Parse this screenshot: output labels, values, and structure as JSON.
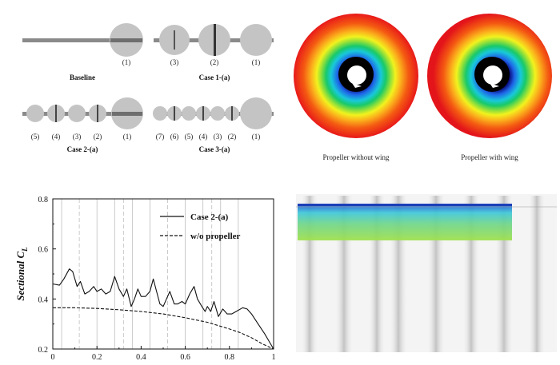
{
  "configs": {
    "baseline": {
      "caption": "Baseline",
      "labels": [
        "(1)"
      ]
    },
    "case1a": {
      "caption": "Case 1-(a)",
      "labels": [
        "(3)",
        "(2)",
        "(1)"
      ]
    },
    "case2a": {
      "caption": "Case 2-(a)",
      "labels": [
        "(5)",
        "(4)",
        "(3)",
        "(2)",
        "(1)"
      ]
    },
    "case3a": {
      "caption": "Case 3-(a)",
      "labels": [
        "(7)",
        "(6)",
        "(5)",
        "(4)",
        "(3)",
        "(2)",
        "(1)"
      ]
    }
  },
  "contours": {
    "left_caption": "Propeller without wing",
    "right_caption": "Propeller with wing",
    "colors": [
      "#e8191a",
      "#f45a12",
      "#fbb01c",
      "#f2f21e",
      "#8fe03a",
      "#18c96a",
      "#19c9d9",
      "#1e66e8",
      "#0a0a7a",
      "#000000"
    ]
  },
  "chart_data": {
    "type": "line",
    "xlim": [
      0,
      1
    ],
    "ylim": [
      0.2,
      0.8
    ],
    "xticks": [
      "0",
      "0.2",
      "0.4",
      "0.6",
      "0.8",
      "1"
    ],
    "yticks": [
      "0.2",
      "0.4",
      "0.6",
      "0.8"
    ],
    "ylabel": "Sectional C",
    "ylabel_sub": "L",
    "legend_placement": "top-right",
    "series": [
      {
        "name": "Case 2-(a)",
        "style": "solid",
        "x": [
          0,
          0.03,
          0.05,
          0.075,
          0.09,
          0.11,
          0.125,
          0.145,
          0.165,
          0.185,
          0.2,
          0.22,
          0.24,
          0.26,
          0.28,
          0.3,
          0.32,
          0.335,
          0.355,
          0.37,
          0.385,
          0.4,
          0.42,
          0.44,
          0.455,
          0.47,
          0.485,
          0.5,
          0.515,
          0.53,
          0.55,
          0.565,
          0.585,
          0.6,
          0.62,
          0.64,
          0.655,
          0.675,
          0.69,
          0.7,
          0.715,
          0.73,
          0.75,
          0.77,
          0.79,
          0.81,
          0.83,
          0.86,
          0.88,
          0.9,
          0.93,
          0.96,
          0.98,
          1.0
        ],
        "y": [
          0.46,
          0.455,
          0.48,
          0.52,
          0.51,
          0.45,
          0.47,
          0.42,
          0.43,
          0.45,
          0.43,
          0.44,
          0.42,
          0.43,
          0.49,
          0.44,
          0.41,
          0.44,
          0.37,
          0.4,
          0.44,
          0.41,
          0.41,
          0.43,
          0.48,
          0.43,
          0.38,
          0.37,
          0.4,
          0.43,
          0.38,
          0.38,
          0.39,
          0.38,
          0.42,
          0.45,
          0.4,
          0.37,
          0.35,
          0.37,
          0.35,
          0.39,
          0.33,
          0.36,
          0.34,
          0.34,
          0.35,
          0.365,
          0.36,
          0.34,
          0.3,
          0.26,
          0.23,
          0.2
        ]
      },
      {
        "name": "w/o propeller",
        "style": "dashed",
        "x": [
          0,
          0.1,
          0.2,
          0.3,
          0.4,
          0.5,
          0.6,
          0.7,
          0.8,
          0.85,
          0.9,
          0.95,
          1.0
        ],
        "y": [
          0.365,
          0.365,
          0.362,
          0.357,
          0.35,
          0.34,
          0.325,
          0.307,
          0.28,
          0.265,
          0.245,
          0.22,
          0.2
        ]
      }
    ],
    "solid_gridlines_x": [
      0.04,
      0.2,
      0.28,
      0.36,
      0.44,
      0.6,
      0.68,
      0.76,
      0.84
    ],
    "dashed_gridlines_x": [
      0.12,
      0.32,
      0.52,
      0.72
    ]
  }
}
